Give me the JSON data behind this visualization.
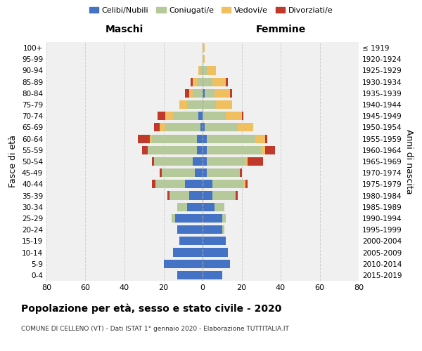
{
  "age_groups": [
    "0-4",
    "5-9",
    "10-14",
    "15-19",
    "20-24",
    "25-29",
    "30-34",
    "35-39",
    "40-44",
    "45-49",
    "50-54",
    "55-59",
    "60-64",
    "65-69",
    "70-74",
    "75-79",
    "80-84",
    "85-89",
    "90-94",
    "95-99",
    "100+"
  ],
  "birth_years": [
    "2015-2019",
    "2010-2014",
    "2005-2009",
    "2000-2004",
    "1995-1999",
    "1990-1994",
    "1985-1989",
    "1980-1984",
    "1975-1979",
    "1970-1974",
    "1965-1969",
    "1960-1964",
    "1955-1959",
    "1950-1954",
    "1945-1949",
    "1940-1944",
    "1935-1939",
    "1930-1934",
    "1925-1929",
    "1920-1924",
    "≤ 1919"
  ],
  "male": {
    "celibi": [
      13,
      20,
      15,
      12,
      13,
      14,
      8,
      7,
      9,
      4,
      5,
      3,
      3,
      1,
      2,
      0,
      0,
      0,
      0,
      0,
      0
    ],
    "coniugati": [
      0,
      0,
      0,
      0,
      0,
      2,
      5,
      10,
      15,
      17,
      20,
      25,
      23,
      18,
      13,
      8,
      5,
      3,
      1,
      0,
      0
    ],
    "vedovi": [
      0,
      0,
      0,
      0,
      0,
      0,
      0,
      0,
      0,
      0,
      0,
      0,
      1,
      3,
      4,
      4,
      2,
      2,
      1,
      0,
      0
    ],
    "divorziati": [
      0,
      0,
      0,
      0,
      0,
      0,
      0,
      1,
      2,
      1,
      1,
      3,
      6,
      3,
      4,
      0,
      2,
      1,
      0,
      0,
      0
    ]
  },
  "female": {
    "nubili": [
      10,
      14,
      13,
      12,
      10,
      10,
      6,
      5,
      5,
      2,
      2,
      2,
      2,
      1,
      0,
      0,
      1,
      0,
      0,
      0,
      0
    ],
    "coniugate": [
      0,
      0,
      0,
      0,
      1,
      2,
      5,
      12,
      16,
      17,
      20,
      28,
      25,
      17,
      12,
      7,
      5,
      5,
      2,
      0,
      0
    ],
    "vedove": [
      0,
      0,
      0,
      0,
      0,
      0,
      0,
      0,
      1,
      0,
      1,
      2,
      5,
      8,
      8,
      8,
      8,
      7,
      5,
      1,
      1
    ],
    "divorziate": [
      0,
      0,
      0,
      0,
      0,
      0,
      0,
      1,
      1,
      1,
      8,
      5,
      1,
      0,
      1,
      0,
      1,
      1,
      0,
      0,
      0
    ]
  },
  "colors": {
    "celibi": "#4472c4",
    "coniugati": "#b5c99a",
    "vedovi": "#f0c060",
    "divorziati": "#c0392b"
  },
  "xlim": 80,
  "title": "Popolazione per età, sesso e stato civile - 2020",
  "subtitle": "COMUNE DI CELLENO (VT) - Dati ISTAT 1° gennaio 2020 - Elaborazione TUTTITALIA.IT",
  "ylabel_left": "Fasce di età",
  "ylabel_right": "Anni di nascita",
  "xlabel_left": "Maschi",
  "xlabel_right": "Femmine",
  "bg_color": "#f0f0f0",
  "grid_color": "#cccccc"
}
